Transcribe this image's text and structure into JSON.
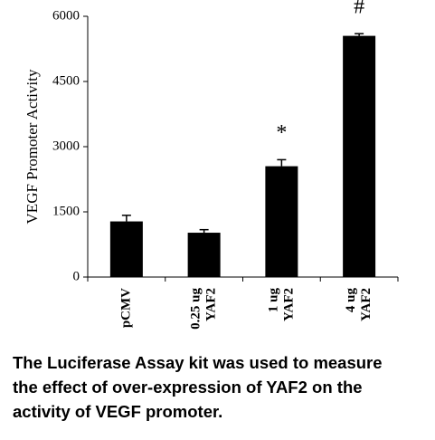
{
  "chart_data": {
    "type": "bar",
    "ylabel": "VEGF Promoter Activity",
    "categories": [
      [
        "pCMV"
      ],
      [
        "0.25 ug",
        "YAF2"
      ],
      [
        "1 ug",
        "YAF2"
      ],
      [
        "4 ug",
        "YAF2"
      ]
    ],
    "values": [
      1280,
      1020,
      2550,
      5550
    ],
    "errors": [
      140,
      70,
      150,
      50
    ],
    "bar_labels": [
      null,
      null,
      "*",
      "#"
    ],
    "color": "#000000",
    "ylim": [
      0,
      6000
    ],
    "yticks": [
      0,
      1500,
      3000,
      4500,
      6000
    ]
  },
  "caption": [
    "The Luciferase Assay kit was used to measure",
    "the effect of over-expression of YAF2 on the",
    "activity of VEGF promoter."
  ]
}
